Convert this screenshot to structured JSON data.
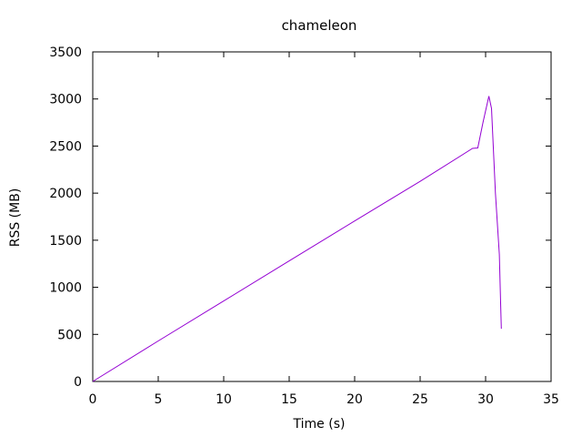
{
  "chart_data": {
    "type": "line",
    "title": "chameleon",
    "xlabel": "Time (s)",
    "ylabel": "RSS (MB)",
    "xlim": [
      0,
      35
    ],
    "ylim": [
      0,
      3500
    ],
    "xticks": [
      0,
      5,
      10,
      15,
      20,
      25,
      30,
      35
    ],
    "yticks": [
      0,
      500,
      1000,
      1500,
      2000,
      2500,
      3000,
      3500
    ],
    "grid": false,
    "legend": "none",
    "series": [
      {
        "color": "#9400d3",
        "x": [
          0,
          5,
          10,
          15,
          20,
          25,
          29.0,
          29.4,
          29.8,
          30.25,
          30.45,
          30.75,
          31.05,
          31.15,
          31.2
        ],
        "y": [
          0,
          430,
          855,
          1280,
          1705,
          2125,
          2475,
          2480,
          2750,
          3030,
          2900,
          2000,
          1350,
          800,
          560
        ]
      }
    ]
  }
}
